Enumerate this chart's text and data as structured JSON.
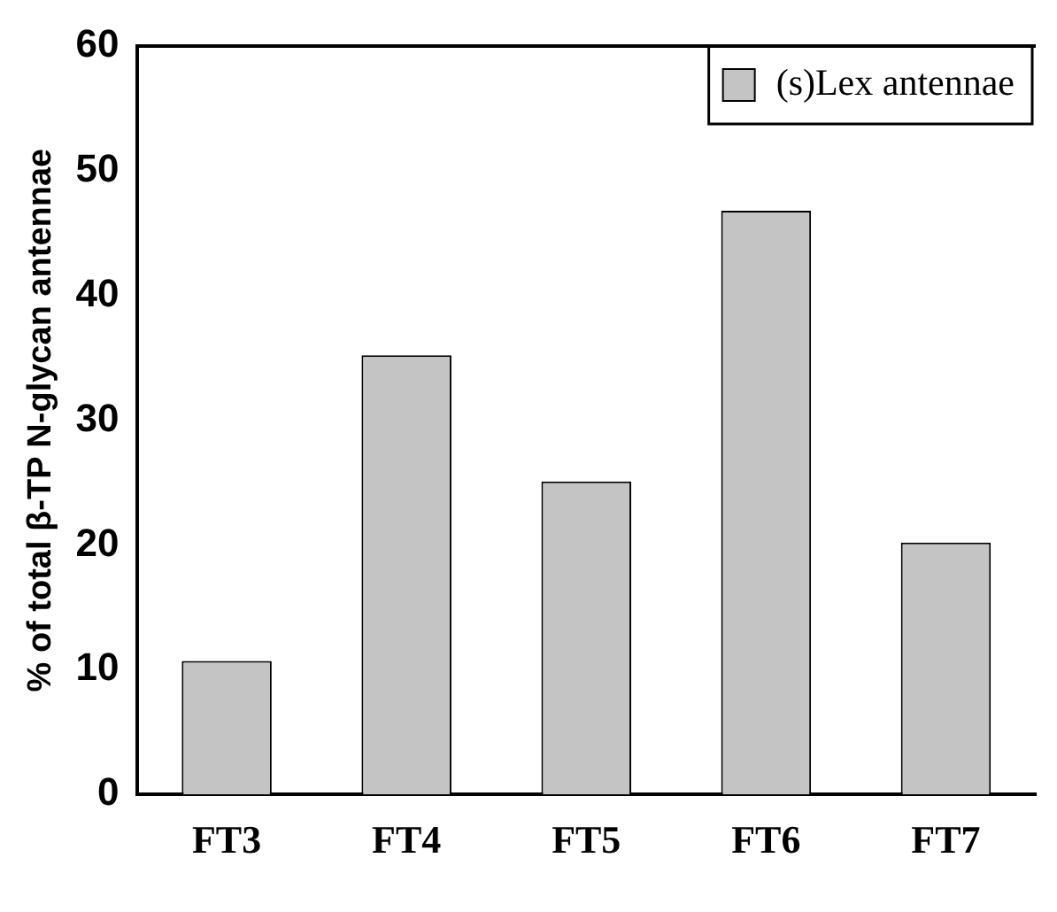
{
  "chart_data": {
    "type": "bar",
    "ylabel": "% of total β-TP N-glycan antennae",
    "categories": [
      "FT3",
      "FT4",
      "FT5",
      "FT6",
      "FT7"
    ],
    "series": [
      {
        "name": "(s)Lex antennae",
        "color": "#c4c4c4",
        "values": [
          10.7,
          35.2,
          25.1,
          46.8,
          20.2
        ]
      }
    ],
    "ylim": [
      0,
      60
    ],
    "yticks": [
      0,
      10,
      20,
      30,
      40,
      50,
      60
    ],
    "grid": false,
    "legend": "top right"
  }
}
